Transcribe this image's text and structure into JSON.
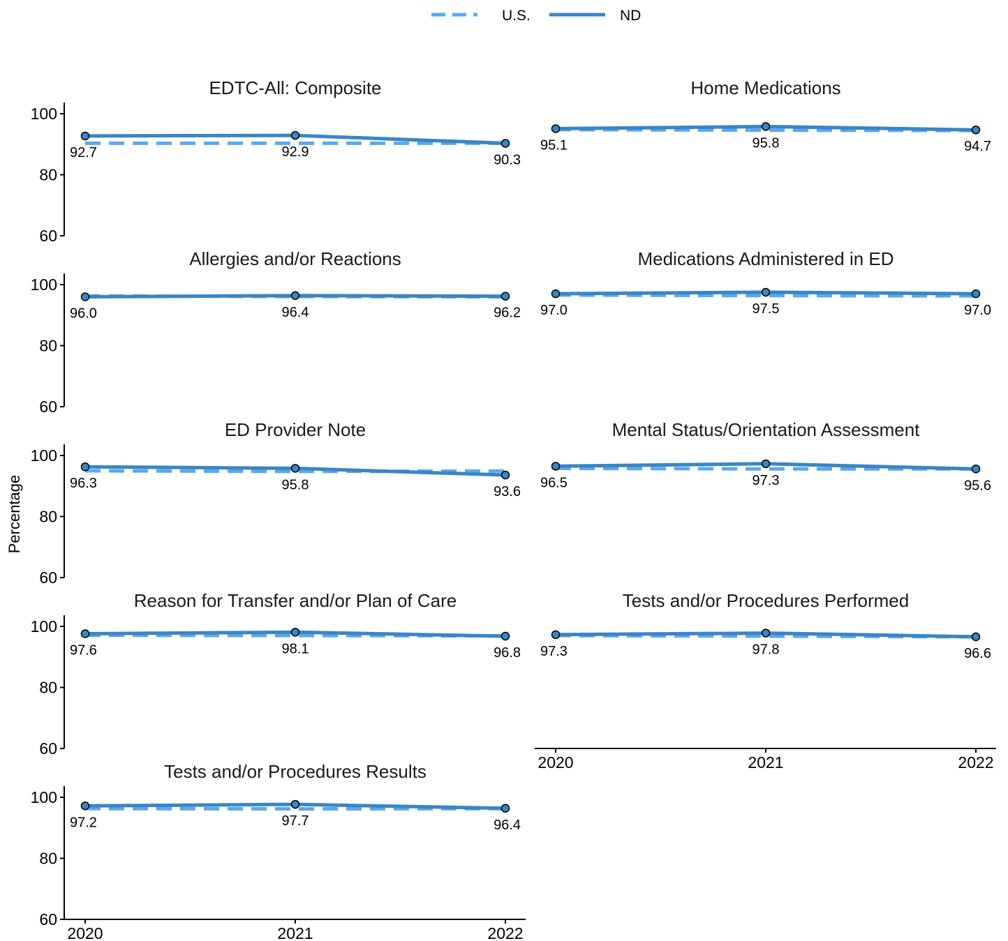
{
  "chart_data": {
    "type": "line",
    "ylabel": "Percentage",
    "ylim": [
      60,
      100
    ],
    "yticks": [
      60,
      80,
      100
    ],
    "x": [
      "2020",
      "2021",
      "2022"
    ],
    "legend": {
      "position": "top",
      "entries": [
        {
          "name": "U.S.",
          "style": "dashed",
          "color": "#5aa9ef"
        },
        {
          "name": "ND",
          "style": "solid",
          "color": "#3a86c4"
        }
      ]
    },
    "panels": [
      {
        "title": "EDTC-All: Composite",
        "nd": [
          92.7,
          92.9,
          90.3
        ],
        "us": [
          90.3,
          90.3,
          90.3
        ],
        "nd_labels": [
          "92.7",
          "92.9",
          "90.3"
        ]
      },
      {
        "title": "Home Medications",
        "nd": [
          95.1,
          95.8,
          94.7
        ],
        "us": [
          94.8,
          94.6,
          94.5
        ],
        "nd_labels": [
          "95.1",
          "95.8",
          "94.7"
        ]
      },
      {
        "title": "Allergies and/or Reactions",
        "nd": [
          96.0,
          96.4,
          96.2
        ],
        "us": [
          96.3,
          96.1,
          96.0
        ],
        "nd_labels": [
          "96.0",
          "96.4",
          "96.2"
        ]
      },
      {
        "title": "Medications Administered in ED",
        "nd": [
          97.0,
          97.5,
          97.0
        ],
        "us": [
          96.6,
          96.4,
          96.3
        ],
        "nd_labels": [
          "97.0",
          "97.5",
          "97.0"
        ]
      },
      {
        "title": "ED Provider Note",
        "nd": [
          96.3,
          95.8,
          93.6
        ],
        "us": [
          95.0,
          94.8,
          94.9
        ],
        "nd_labels": [
          "96.3",
          "95.8",
          "93.6"
        ]
      },
      {
        "title": "Mental Status/Orientation Assessment",
        "nd": [
          96.5,
          97.3,
          95.6
        ],
        "us": [
          95.8,
          95.6,
          95.6
        ],
        "nd_labels": [
          "96.5",
          "97.3",
          "95.6"
        ]
      },
      {
        "title": "Reason for Transfer and/or Plan of Care",
        "nd": [
          97.6,
          98.1,
          96.8
        ],
        "us": [
          97.1,
          97.0,
          96.9
        ],
        "nd_labels": [
          "97.6",
          "98.1",
          "96.8"
        ]
      },
      {
        "title": "Tests and/or Procedures Performed",
        "nd": [
          97.3,
          97.8,
          96.6
        ],
        "us": [
          97.0,
          96.8,
          96.6
        ],
        "nd_labels": [
          "97.3",
          "97.8",
          "96.6"
        ]
      },
      {
        "title": "Tests and/or Procedures Results",
        "nd": [
          97.2,
          97.7,
          96.4
        ],
        "us": [
          96.3,
          96.2,
          96.3
        ],
        "nd_labels": [
          "97.2",
          "97.7",
          "96.4"
        ]
      }
    ]
  }
}
